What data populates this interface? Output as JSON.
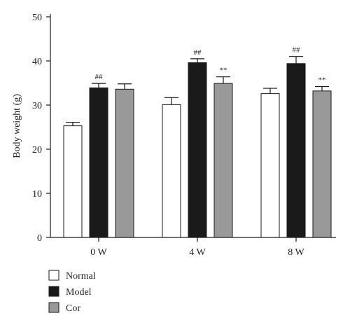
{
  "chart_data": {
    "type": "bar",
    "ylabel": "Body weight (g)",
    "xlabel": "",
    "ylim": [
      0,
      50
    ],
    "yticks": [
      0,
      10,
      20,
      30,
      40,
      50
    ],
    "categories": [
      "0 W",
      "4 W",
      "8 W"
    ],
    "series": [
      {
        "name": "Normal",
        "color": "#ffffff",
        "values": [
          25.3,
          30.1,
          32.6
        ],
        "errors": [
          0.8,
          1.6,
          1.2
        ],
        "annotations": [
          "",
          "",
          ""
        ]
      },
      {
        "name": "Model",
        "color": "#1a1a1a",
        "values": [
          33.9,
          39.6,
          39.4
        ],
        "errors": [
          1.0,
          0.9,
          1.6
        ],
        "annotations": [
          "##",
          "##",
          "##"
        ]
      },
      {
        "name": "Cor",
        "color": "#999999",
        "values": [
          33.6,
          34.9,
          33.2
        ],
        "errors": [
          1.2,
          1.5,
          1.0
        ],
        "annotations": [
          "",
          "**",
          "**"
        ]
      }
    ],
    "legend_position": "bottom-left"
  }
}
